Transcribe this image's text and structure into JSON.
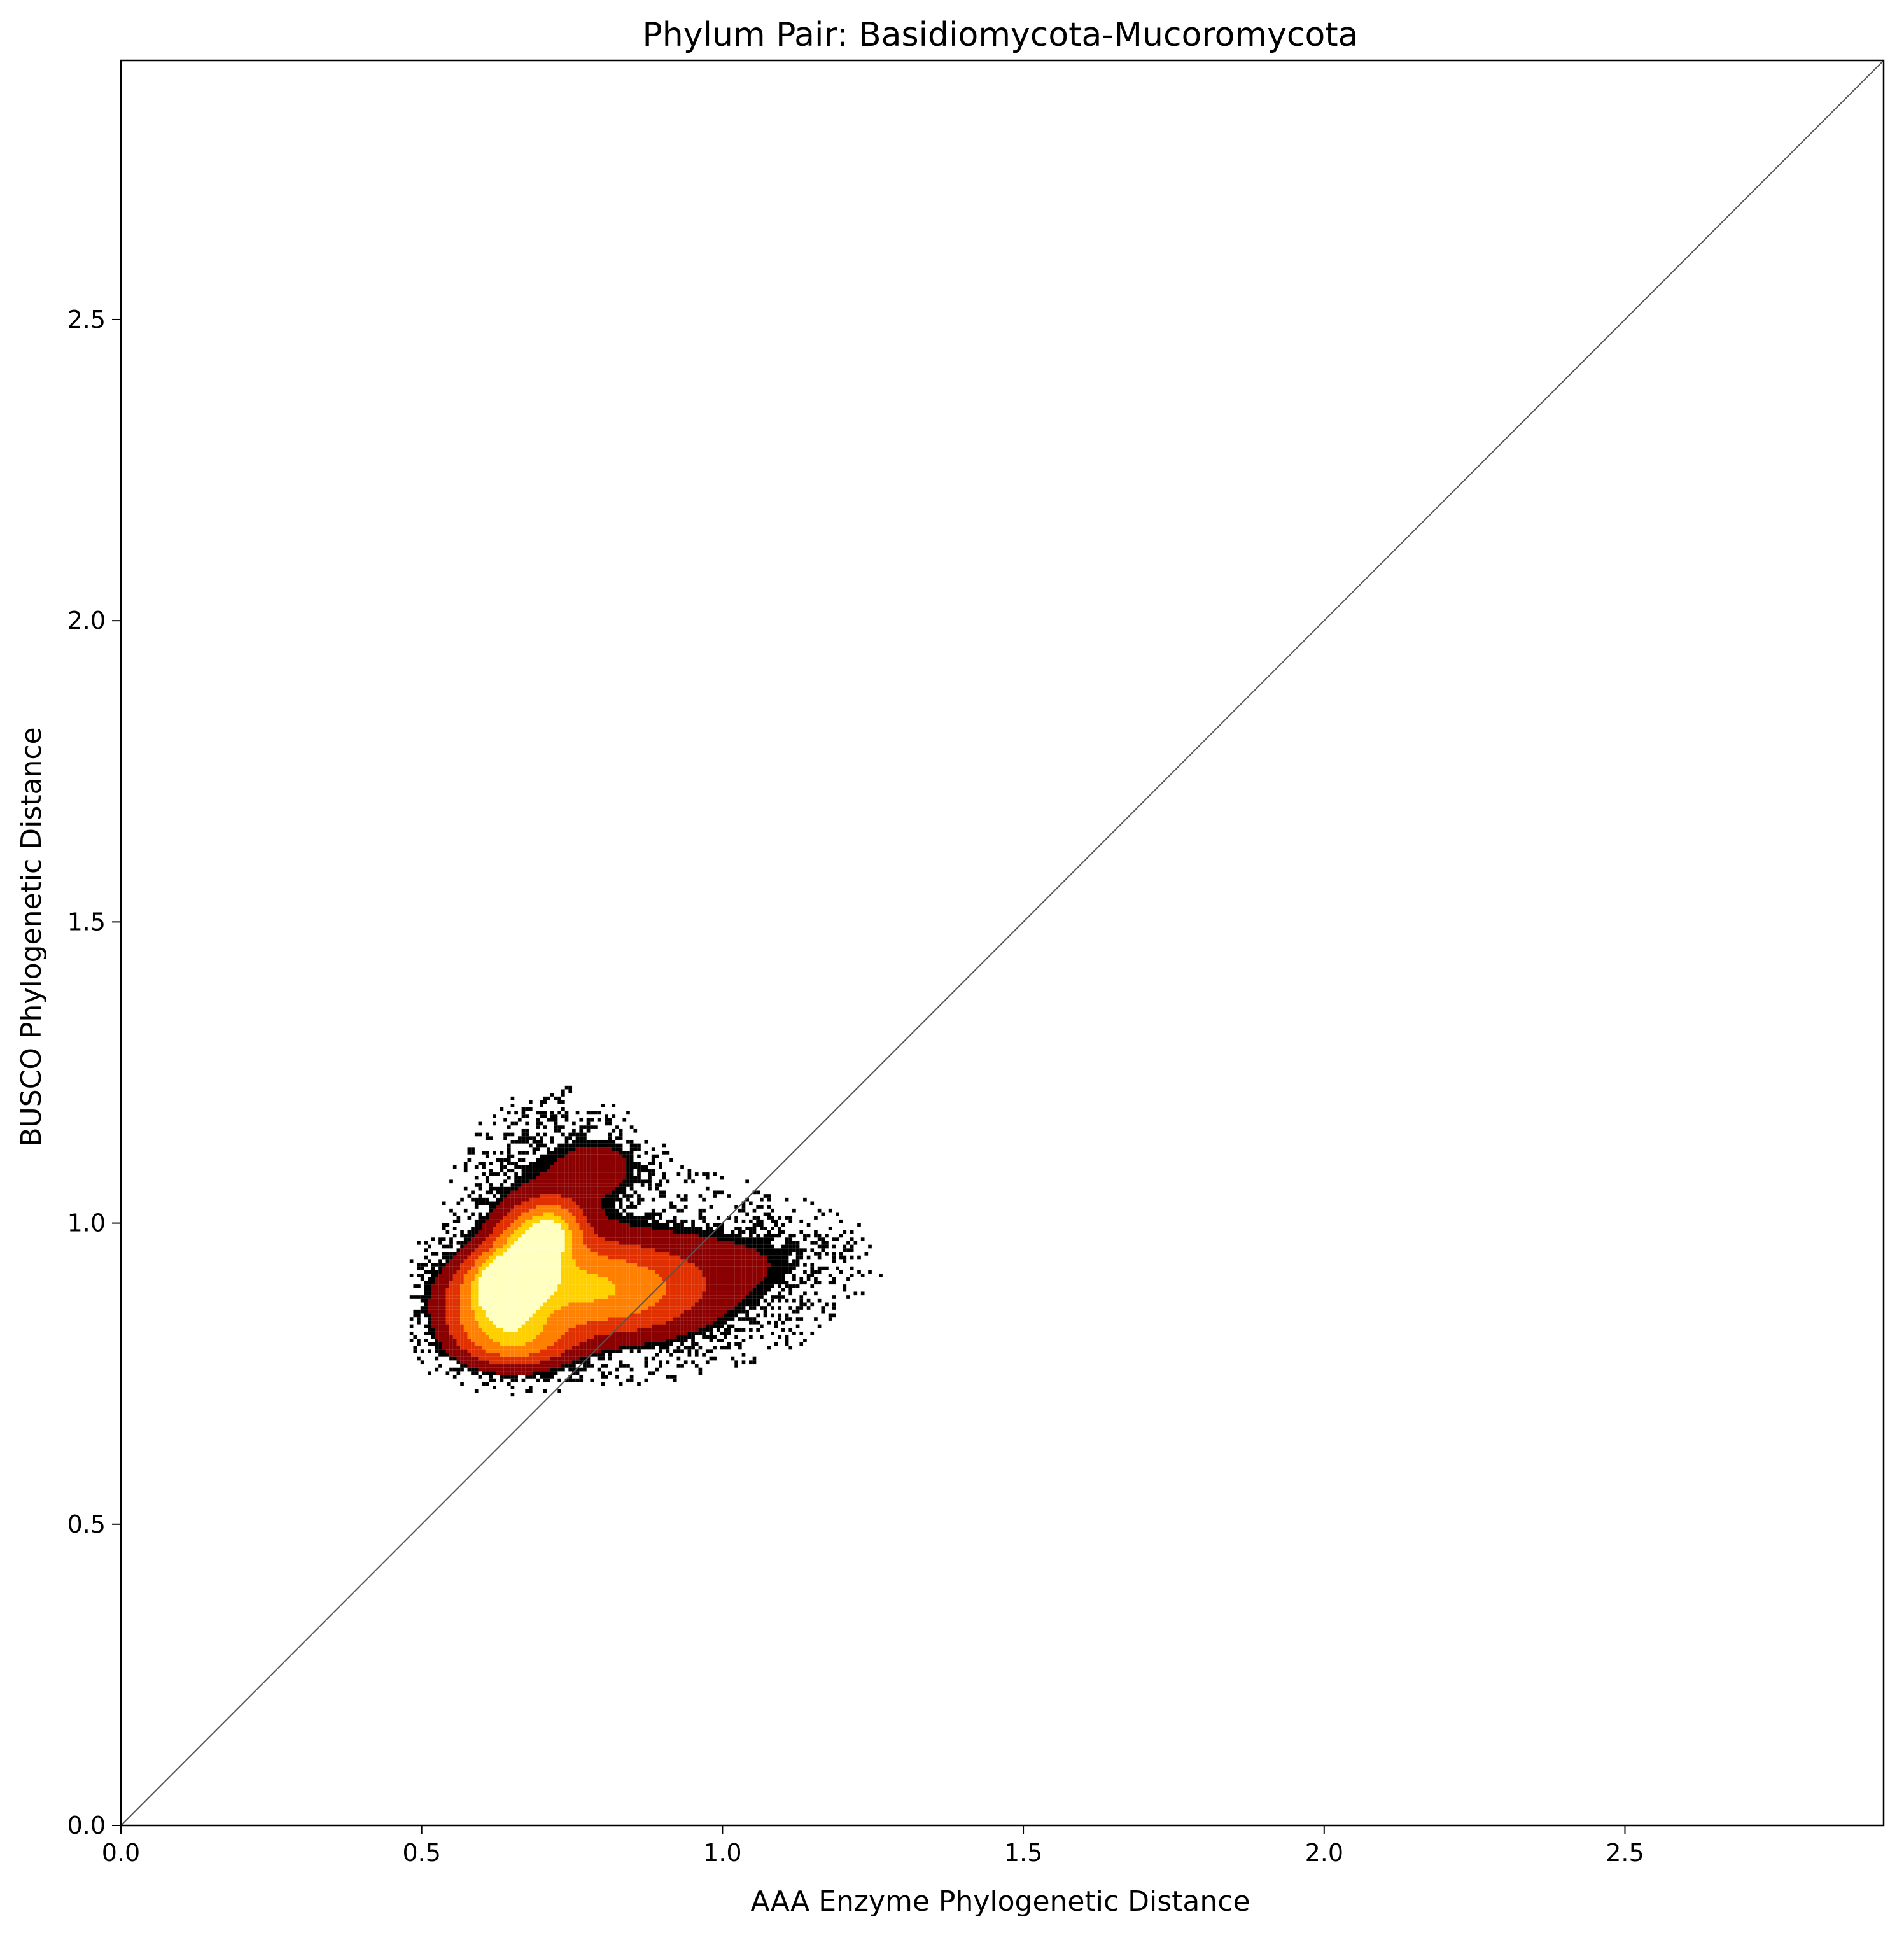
{
  "chart_data": {
    "type": "heatmap",
    "title": "Phylum Pair: Basidiomycota-Mucoromycota",
    "xlabel": "AAA Enzyme Phylogenetic Distance",
    "ylabel": "BUSCO Phylogenetic Distance",
    "xlim": [
      0,
      2.93
    ],
    "ylim": [
      0,
      2.93
    ],
    "x_ticks": [
      "0.0",
      "0.5",
      "1.0",
      "1.5",
      "2.0",
      "2.5"
    ],
    "y_ticks": [
      "0.0",
      "0.5",
      "1.0",
      "1.5",
      "2.0",
      "2.5"
    ],
    "x_tick_values": [
      0,
      0.5,
      1.0,
      1.5,
      2.0,
      2.5
    ],
    "y_tick_values": [
      0,
      0.5,
      1.0,
      1.5,
      2.0,
      2.5
    ],
    "grid": false,
    "reference_line": {
      "from": [
        0,
        0
      ],
      "to": [
        2.93,
        2.93
      ],
      "color": "#555555"
    },
    "colormap": "hot",
    "colors": [
      "#000000",
      "#8b0000",
      "#e03000",
      "#ff8000",
      "#ffd000",
      "#ffffc0"
    ],
    "clusters": [
      {
        "x": 0.64,
        "y": 0.9,
        "sx": 0.035,
        "sy": 0.03,
        "density": 1.0
      },
      {
        "x": 0.68,
        "y": 0.96,
        "sx": 0.04,
        "sy": 0.04,
        "density": 0.8
      },
      {
        "x": 0.62,
        "y": 0.86,
        "sx": 0.06,
        "sy": 0.05,
        "density": 0.7
      },
      {
        "x": 0.75,
        "y": 0.89,
        "sx": 0.08,
        "sy": 0.05,
        "density": 0.55
      },
      {
        "x": 0.66,
        "y": 0.8,
        "sx": 0.06,
        "sy": 0.03,
        "density": 0.45
      },
      {
        "x": 0.72,
        "y": 0.99,
        "sx": 0.03,
        "sy": 0.03,
        "density": 0.5
      },
      {
        "x": 0.86,
        "y": 0.88,
        "sx": 0.08,
        "sy": 0.05,
        "density": 0.3
      },
      {
        "x": 0.95,
        "y": 0.91,
        "sx": 0.12,
        "sy": 0.06,
        "density": 0.12
      },
      {
        "x": 0.72,
        "y": 1.07,
        "sx": 0.08,
        "sy": 0.08,
        "density": 0.12
      },
      {
        "x": 0.8,
        "y": 1.09,
        "sx": 0.04,
        "sy": 0.03,
        "density": 0.15
      },
      {
        "x": 1.08,
        "y": 0.94,
        "sx": 0.1,
        "sy": 0.04,
        "density": 0.05
      }
    ]
  }
}
